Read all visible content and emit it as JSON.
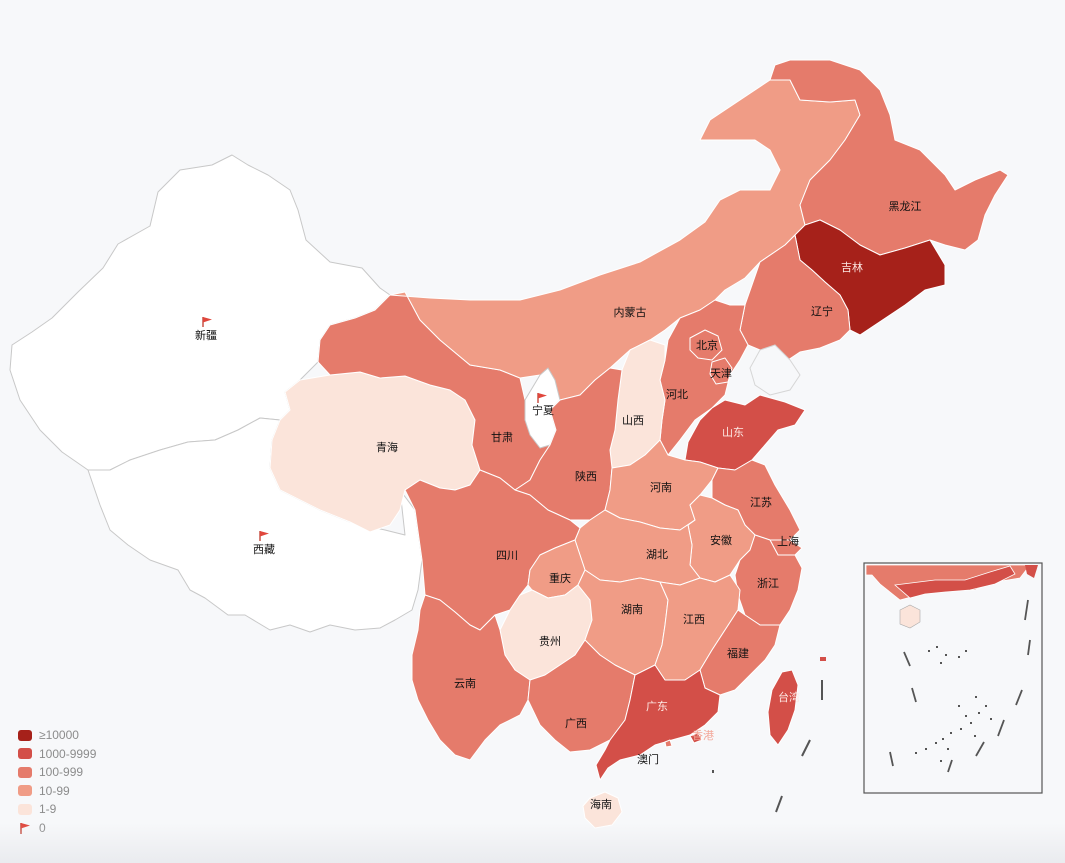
{
  "map": {
    "colors": {
      "ge10000": "#a6211a",
      "r1000": "#d34f48",
      "r100": "#e57b6b",
      "r10": "#f09c86",
      "r1": "#fbe4da",
      "zero": "#ffffff"
    },
    "regions": [
      {
        "name": "黑龙江",
        "level": "100-999"
      },
      {
        "name": "吉林",
        "level": "≥10000"
      },
      {
        "name": "辽宁",
        "level": "100-999"
      },
      {
        "name": "内蒙古",
        "level": "10-99"
      },
      {
        "name": "北京",
        "level": "100-999"
      },
      {
        "name": "天津",
        "level": "100-999"
      },
      {
        "name": "河北",
        "level": "100-999"
      },
      {
        "name": "山西",
        "level": "1-9"
      },
      {
        "name": "山东",
        "level": "1000-9999"
      },
      {
        "name": "新疆",
        "level": "0"
      },
      {
        "name": "西藏",
        "level": "0"
      },
      {
        "name": "青海",
        "level": "1-9"
      },
      {
        "name": "甘肃",
        "level": "100-999"
      },
      {
        "name": "宁夏",
        "level": "0"
      },
      {
        "name": "陕西",
        "level": "100-999"
      },
      {
        "name": "河南",
        "level": "10-99"
      },
      {
        "name": "江苏",
        "level": "100-999"
      },
      {
        "name": "上海",
        "level": "100-999"
      },
      {
        "name": "安徽",
        "level": "10-99"
      },
      {
        "name": "湖北",
        "level": "10-99"
      },
      {
        "name": "四川",
        "level": "100-999"
      },
      {
        "name": "重庆",
        "level": "10-99"
      },
      {
        "name": "浙江",
        "level": "100-999"
      },
      {
        "name": "贵州",
        "level": "1-9"
      },
      {
        "name": "湖南",
        "level": "10-99"
      },
      {
        "name": "江西",
        "level": "10-99"
      },
      {
        "name": "福建",
        "level": "100-999"
      },
      {
        "name": "云南",
        "level": "100-999"
      },
      {
        "name": "广西",
        "level": "100-999"
      },
      {
        "name": "广东",
        "level": "1000-9999"
      },
      {
        "name": "台湾",
        "level": "1000-9999"
      },
      {
        "name": "香港",
        "level": "1000-9999"
      },
      {
        "name": "澳门",
        "level": "100-999"
      },
      {
        "name": "海南",
        "level": "1-9"
      }
    ]
  },
  "legend": {
    "items": [
      {
        "label": "≥10000",
        "color": "#a6211a"
      },
      {
        "label": "1000-9999",
        "color": "#d34f48"
      },
      {
        "label": "100-999",
        "color": "#e57b6b"
      },
      {
        "label": "10-99",
        "color": "#f09c86"
      },
      {
        "label": "1-9",
        "color": "#fbe4da"
      },
      {
        "label": "0",
        "icon": "flag-icon",
        "color": "#d9463e"
      }
    ]
  }
}
